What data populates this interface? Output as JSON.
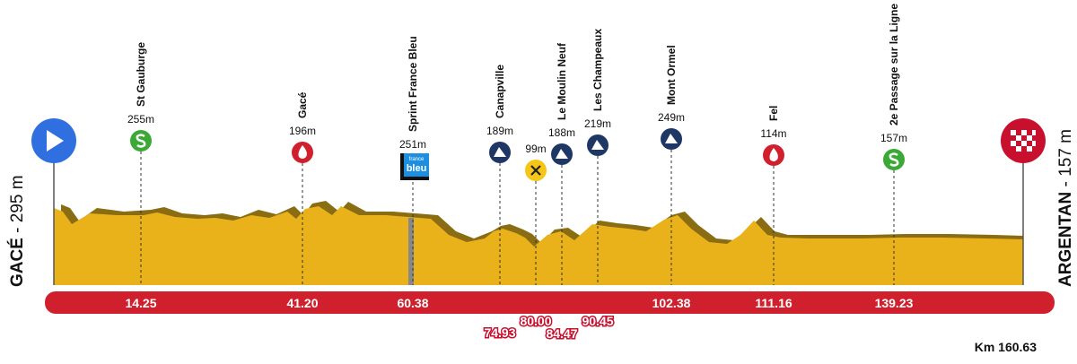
{
  "start": {
    "name": "GACÉ",
    "altitude": "- 295 m"
  },
  "finish": {
    "name": "ARGENTAN",
    "altitude": "- 157 m"
  },
  "waypoints": [
    {
      "name": "St Gauburge",
      "altitude": "255m",
      "km": "14.25"
    },
    {
      "name": "Gacé",
      "altitude": "196m",
      "km": "41.20"
    },
    {
      "name": "Sprint France Bleu",
      "altitude": "251m",
      "km": "60.38"
    },
    {
      "name": "Canapville",
      "altitude": "189m",
      "km": "74.93"
    },
    {
      "altitude": "99m",
      "km": "80.00"
    },
    {
      "name": "Le Moulin Neuf",
      "altitude": "188m",
      "km": "84.47"
    },
    {
      "name": "Les Champeaux",
      "altitude": "219m",
      "km": "90.45"
    },
    {
      "name": "Mont Ormel",
      "altitude": "249m",
      "km": "102.38"
    },
    {
      "name": "Fel",
      "altitude": "114m",
      "km": "111.16"
    },
    {
      "name": "2e Passage sur la Ligne",
      "altitude": "157m",
      "km": "139.23"
    }
  ],
  "total": {
    "prefix": "Km",
    "km": "160.63"
  },
  "logo": {
    "top": "france",
    "bottom": "bleu"
  }
}
